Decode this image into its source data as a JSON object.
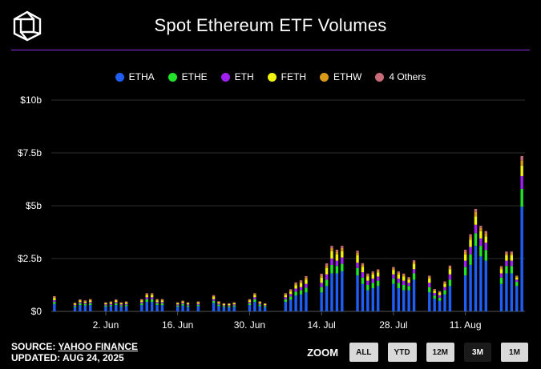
{
  "header": {
    "title": "Spot Ethereum ETF Volumes",
    "logo_icon": "cube-logo-icon"
  },
  "accent_color": "#8b2be2",
  "legend": [
    {
      "label": "ETHA",
      "color": "#1f5ef5"
    },
    {
      "label": "ETHE",
      "color": "#21e32a"
    },
    {
      "label": "ETH",
      "color": "#a11ff2"
    },
    {
      "label": "FETH",
      "color": "#f2f20f"
    },
    {
      "label": "ETHW",
      "color": "#d99a1a"
    },
    {
      "label": "4 Others",
      "color": "#c96b78"
    }
  ],
  "footer": {
    "source_prefix": "SOURCE:",
    "source_name": "YAHOO FINANCE",
    "updated": "UPDATED: AUG 24, 2025"
  },
  "zoom": {
    "label": "ZOOM",
    "buttons": [
      "ALL",
      "YTD",
      "12M",
      "3M",
      "1M"
    ],
    "active": "3M"
  },
  "chart_data": {
    "type": "bar",
    "stacked": true,
    "title": "Spot Ethereum ETF Volumes",
    "ylabel": "",
    "xlabel": "",
    "ylim": [
      0,
      10
    ],
    "y_unit": "$ billions",
    "y_ticks": [
      "$0",
      "$2.5b",
      "$5b",
      "$7.5b",
      "$10b"
    ],
    "x_tick_labels": [
      "2. Jun",
      "16. Jun",
      "30. Jun",
      "14. Jul",
      "28. Jul",
      "11. Aug"
    ],
    "x_tick_dates": [
      "2025-06-02",
      "2025-06-16",
      "2025-06-30",
      "2025-07-14",
      "2025-07-28",
      "2025-08-11"
    ],
    "grid": true,
    "legend_position": "top-center",
    "categories": [
      "2025-05-23",
      "2025-05-27",
      "2025-05-28",
      "2025-05-29",
      "2025-05-30",
      "2025-06-02",
      "2025-06-03",
      "2025-06-04",
      "2025-06-05",
      "2025-06-06",
      "2025-06-09",
      "2025-06-10",
      "2025-06-11",
      "2025-06-12",
      "2025-06-13",
      "2025-06-16",
      "2025-06-17",
      "2025-06-18",
      "2025-06-20",
      "2025-06-23",
      "2025-06-24",
      "2025-06-25",
      "2025-06-26",
      "2025-06-27",
      "2025-06-30",
      "2025-07-01",
      "2025-07-02",
      "2025-07-03",
      "2025-07-07",
      "2025-07-08",
      "2025-07-09",
      "2025-07-10",
      "2025-07-11",
      "2025-07-14",
      "2025-07-15",
      "2025-07-16",
      "2025-07-17",
      "2025-07-18",
      "2025-07-21",
      "2025-07-22",
      "2025-07-23",
      "2025-07-24",
      "2025-07-25",
      "2025-07-28",
      "2025-07-29",
      "2025-07-30",
      "2025-07-31",
      "2025-08-01",
      "2025-08-04",
      "2025-08-05",
      "2025-08-06",
      "2025-08-07",
      "2025-08-08",
      "2025-08-11",
      "2025-08-12",
      "2025-08-13",
      "2025-08-14",
      "2025-08-15",
      "2025-08-18",
      "2025-08-19",
      "2025-08-20",
      "2025-08-21",
      "2025-08-22"
    ],
    "series": [
      {
        "name": "ETHA",
        "values": [
          0.35,
          0.2,
          0.3,
          0.28,
          0.3,
          0.22,
          0.25,
          0.3,
          0.22,
          0.25,
          0.3,
          0.45,
          0.45,
          0.3,
          0.3,
          0.22,
          0.28,
          0.22,
          0.25,
          0.4,
          0.25,
          0.2,
          0.2,
          0.22,
          0.3,
          0.45,
          0.25,
          0.2,
          0.45,
          0.55,
          0.75,
          0.8,
          0.9,
          0.9,
          1.2,
          1.8,
          1.8,
          1.9,
          1.7,
          1.3,
          1.0,
          1.1,
          1.2,
          1.3,
          1.1,
          1.0,
          1.0,
          1.5,
          0.9,
          0.6,
          0.5,
          0.8,
          1.2,
          1.7,
          2.2,
          3.1,
          2.6,
          2.4,
          1.3,
          1.8,
          1.8,
          1.2,
          4.95
        ]
      },
      {
        "name": "ETHE",
        "values": [
          0.1,
          0.06,
          0.08,
          0.07,
          0.08,
          0.06,
          0.06,
          0.08,
          0.06,
          0.06,
          0.08,
          0.12,
          0.12,
          0.08,
          0.08,
          0.06,
          0.07,
          0.06,
          0.06,
          0.1,
          0.07,
          0.05,
          0.05,
          0.06,
          0.08,
          0.12,
          0.07,
          0.05,
          0.12,
          0.15,
          0.18,
          0.2,
          0.22,
          0.25,
          0.3,
          0.4,
          0.35,
          0.35,
          0.35,
          0.3,
          0.25,
          0.25,
          0.25,
          0.25,
          0.25,
          0.25,
          0.2,
          0.3,
          0.25,
          0.15,
          0.15,
          0.2,
          0.3,
          0.4,
          0.5,
          0.6,
          0.5,
          0.5,
          0.3,
          0.35,
          0.35,
          0.2,
          0.85
        ]
      },
      {
        "name": "ETH",
        "values": [
          0.08,
          0.05,
          0.06,
          0.05,
          0.06,
          0.05,
          0.05,
          0.06,
          0.05,
          0.05,
          0.06,
          0.1,
          0.1,
          0.06,
          0.06,
          0.05,
          0.05,
          0.05,
          0.05,
          0.08,
          0.05,
          0.04,
          0.04,
          0.05,
          0.06,
          0.1,
          0.05,
          0.04,
          0.1,
          0.12,
          0.15,
          0.15,
          0.18,
          0.2,
          0.25,
          0.3,
          0.25,
          0.3,
          0.25,
          0.25,
          0.2,
          0.2,
          0.2,
          0.2,
          0.2,
          0.2,
          0.15,
          0.2,
          0.2,
          0.12,
          0.12,
          0.15,
          0.25,
          0.3,
          0.35,
          0.4,
          0.35,
          0.35,
          0.2,
          0.25,
          0.25,
          0.1,
          0.6
        ]
      },
      {
        "name": "FETH",
        "values": [
          0.1,
          0.05,
          0.07,
          0.06,
          0.07,
          0.05,
          0.06,
          0.07,
          0.05,
          0.06,
          0.07,
          0.1,
          0.1,
          0.07,
          0.07,
          0.05,
          0.06,
          0.05,
          0.06,
          0.1,
          0.06,
          0.05,
          0.05,
          0.05,
          0.07,
          0.1,
          0.06,
          0.05,
          0.1,
          0.12,
          0.15,
          0.18,
          0.2,
          0.25,
          0.3,
          0.35,
          0.3,
          0.3,
          0.35,
          0.25,
          0.2,
          0.2,
          0.2,
          0.2,
          0.2,
          0.2,
          0.15,
          0.25,
          0.2,
          0.1,
          0.1,
          0.15,
          0.25,
          0.3,
          0.35,
          0.4,
          0.35,
          0.3,
          0.2,
          0.25,
          0.25,
          0.1,
          0.5
        ]
      },
      {
        "name": "ETHW",
        "values": [
          0.05,
          0.03,
          0.03,
          0.03,
          0.04,
          0.03,
          0.03,
          0.03,
          0.03,
          0.03,
          0.04,
          0.05,
          0.05,
          0.04,
          0.04,
          0.03,
          0.03,
          0.03,
          0.03,
          0.05,
          0.03,
          0.02,
          0.02,
          0.03,
          0.04,
          0.05,
          0.03,
          0.02,
          0.05,
          0.06,
          0.08,
          0.08,
          0.1,
          0.1,
          0.12,
          0.15,
          0.12,
          0.15,
          0.12,
          0.1,
          0.08,
          0.08,
          0.08,
          0.08,
          0.08,
          0.08,
          0.07,
          0.1,
          0.08,
          0.05,
          0.05,
          0.07,
          0.1,
          0.12,
          0.15,
          0.2,
          0.15,
          0.15,
          0.08,
          0.1,
          0.1,
          0.05,
          0.25
        ]
      },
      {
        "name": "4 Others",
        "values": [
          0.04,
          0.02,
          0.03,
          0.03,
          0.03,
          0.02,
          0.02,
          0.03,
          0.02,
          0.02,
          0.03,
          0.04,
          0.04,
          0.03,
          0.03,
          0.02,
          0.02,
          0.02,
          0.02,
          0.04,
          0.02,
          0.02,
          0.02,
          0.02,
          0.03,
          0.04,
          0.02,
          0.02,
          0.04,
          0.05,
          0.06,
          0.06,
          0.07,
          0.08,
          0.1,
          0.1,
          0.1,
          0.1,
          0.1,
          0.08,
          0.06,
          0.06,
          0.06,
          0.07,
          0.06,
          0.06,
          0.05,
          0.07,
          0.06,
          0.04,
          0.04,
          0.05,
          0.07,
          0.1,
          0.1,
          0.15,
          0.1,
          0.1,
          0.06,
          0.08,
          0.08,
          0.04,
          0.2
        ]
      }
    ]
  }
}
